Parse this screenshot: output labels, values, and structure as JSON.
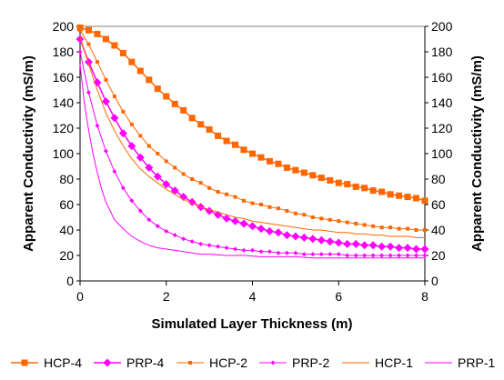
{
  "chart_data": {
    "type": "line",
    "xlabel": "Simulated Layer Thickness (m)",
    "ylabel_left": "Apparent Conductivity (mS/m)",
    "ylabel_right": "Apparent Conductivity (mS/m)",
    "xlim": [
      0,
      8
    ],
    "ylim": [
      0,
      200
    ],
    "x_ticks": [
      "0",
      "2",
      "4",
      "6",
      "8"
    ],
    "y_ticks": [
      "0",
      "20",
      "40",
      "60",
      "80",
      "100",
      "120",
      "140",
      "160",
      "180",
      "200"
    ],
    "grid": false,
    "legend_position": "bottom",
    "series": [
      {
        "name": "HCP-4",
        "color": "#ff6600",
        "marker": "square",
        "width": 1.5,
        "points": [
          [
            0,
            199
          ],
          [
            0.2,
            197
          ],
          [
            0.4,
            194
          ],
          [
            0.6,
            190
          ],
          [
            0.8,
            185
          ],
          [
            1,
            179
          ],
          [
            1.2,
            172
          ],
          [
            1.4,
            165
          ],
          [
            1.6,
            158
          ],
          [
            1.8,
            151
          ],
          [
            2,
            145
          ],
          [
            2.2,
            139
          ],
          [
            2.4,
            134
          ],
          [
            2.6,
            128
          ],
          [
            2.8,
            123
          ],
          [
            3,
            119
          ],
          [
            3.2,
            114
          ],
          [
            3.4,
            110
          ],
          [
            3.6,
            107
          ],
          [
            3.8,
            103
          ],
          [
            4,
            100
          ],
          [
            4.2,
            97
          ],
          [
            4.4,
            94
          ],
          [
            4.6,
            92
          ],
          [
            4.8,
            89
          ],
          [
            5,
            87
          ],
          [
            5.2,
            85
          ],
          [
            5.4,
            83
          ],
          [
            5.6,
            81
          ],
          [
            5.8,
            79
          ],
          [
            6,
            77
          ],
          [
            6.2,
            76
          ],
          [
            6.4,
            74
          ],
          [
            6.6,
            73
          ],
          [
            6.8,
            71
          ],
          [
            7,
            70
          ],
          [
            7.2,
            68
          ],
          [
            7.4,
            67
          ],
          [
            7.6,
            66
          ],
          [
            7.8,
            65
          ],
          [
            8,
            63
          ]
        ]
      },
      {
        "name": "PRP-4",
        "color": "#ff00ff",
        "marker": "diamond",
        "width": 1.5,
        "points": [
          [
            0,
            190
          ],
          [
            0.2,
            172
          ],
          [
            0.4,
            156
          ],
          [
            0.6,
            141
          ],
          [
            0.8,
            128
          ],
          [
            1,
            116
          ],
          [
            1.2,
            106
          ],
          [
            1.4,
            97
          ],
          [
            1.6,
            89
          ],
          [
            1.8,
            82
          ],
          [
            2,
            76
          ],
          [
            2.2,
            71
          ],
          [
            2.4,
            66
          ],
          [
            2.6,
            62
          ],
          [
            2.8,
            58
          ],
          [
            3,
            55
          ],
          [
            3.2,
            52
          ],
          [
            3.4,
            49
          ],
          [
            3.6,
            47
          ],
          [
            3.8,
            45
          ],
          [
            4,
            43
          ],
          [
            4.2,
            41
          ],
          [
            4.4,
            39
          ],
          [
            4.6,
            38
          ],
          [
            4.8,
            36
          ],
          [
            5,
            35
          ],
          [
            5.2,
            34
          ],
          [
            5.4,
            33
          ],
          [
            5.6,
            32
          ],
          [
            5.8,
            31
          ],
          [
            6,
            30
          ],
          [
            6.2,
            29
          ],
          [
            6.4,
            29
          ],
          [
            6.6,
            28
          ],
          [
            6.8,
            28
          ],
          [
            7,
            27
          ],
          [
            7.2,
            27
          ],
          [
            7.4,
            26
          ],
          [
            7.6,
            26
          ],
          [
            7.8,
            25
          ],
          [
            8,
            25
          ]
        ]
      },
      {
        "name": "HCP-2",
        "color": "#ff6600",
        "marker": "small-square",
        "width": 1,
        "points": [
          [
            0,
            197
          ],
          [
            0.2,
            186
          ],
          [
            0.4,
            172
          ],
          [
            0.6,
            158
          ],
          [
            0.8,
            145
          ],
          [
            1,
            133
          ],
          [
            1.2,
            123
          ],
          [
            1.4,
            114
          ],
          [
            1.6,
            106
          ],
          [
            1.8,
            100
          ],
          [
            2,
            94
          ],
          [
            2.2,
            89
          ],
          [
            2.4,
            84
          ],
          [
            2.6,
            80
          ],
          [
            2.8,
            77
          ],
          [
            3,
            73
          ],
          [
            3.2,
            70
          ],
          [
            3.4,
            68
          ],
          [
            3.6,
            66
          ],
          [
            3.8,
            63
          ],
          [
            4,
            61
          ],
          [
            4.2,
            60
          ],
          [
            4.4,
            58
          ],
          [
            4.6,
            57
          ],
          [
            4.8,
            55
          ],
          [
            5,
            53
          ],
          [
            5.2,
            52
          ],
          [
            5.4,
            50
          ],
          [
            5.6,
            49
          ],
          [
            5.8,
            48
          ],
          [
            6,
            47
          ],
          [
            6.2,
            46
          ],
          [
            6.4,
            45
          ],
          [
            6.6,
            44
          ],
          [
            6.8,
            43
          ],
          [
            7,
            42
          ],
          [
            7.2,
            42
          ],
          [
            7.4,
            41
          ],
          [
            7.6,
            41
          ],
          [
            7.8,
            40
          ],
          [
            8,
            40
          ]
        ]
      },
      {
        "name": "PRP-2",
        "color": "#ff00ff",
        "marker": "small-diamond",
        "width": 1,
        "points": [
          [
            0,
            180
          ],
          [
            0.2,
            148
          ],
          [
            0.4,
            122
          ],
          [
            0.6,
            102
          ],
          [
            0.8,
            86
          ],
          [
            1,
            73
          ],
          [
            1.2,
            63
          ],
          [
            1.4,
            55
          ],
          [
            1.6,
            48
          ],
          [
            1.8,
            43
          ],
          [
            2,
            39
          ],
          [
            2.2,
            36
          ],
          [
            2.4,
            33
          ],
          [
            2.6,
            31
          ],
          [
            2.8,
            29
          ],
          [
            3,
            28
          ],
          [
            3.2,
            27
          ],
          [
            3.4,
            26
          ],
          [
            3.6,
            25
          ],
          [
            3.8,
            24
          ],
          [
            4,
            24
          ],
          [
            4.2,
            23
          ],
          [
            4.4,
            23
          ],
          [
            4.6,
            22
          ],
          [
            4.8,
            22
          ],
          [
            5,
            22
          ],
          [
            5.2,
            21
          ],
          [
            5.4,
            21
          ],
          [
            5.6,
            21
          ],
          [
            5.8,
            21
          ],
          [
            6,
            21
          ],
          [
            6.2,
            20
          ],
          [
            6.4,
            20
          ],
          [
            6.6,
            20
          ],
          [
            6.8,
            20
          ],
          [
            7,
            20
          ],
          [
            7.2,
            20
          ],
          [
            7.4,
            20
          ],
          [
            7.6,
            20
          ],
          [
            7.8,
            20
          ],
          [
            8,
            20
          ]
        ]
      },
      {
        "name": "HCP-1",
        "color": "#ff6600",
        "marker": "none",
        "width": 1,
        "points": [
          [
            0,
            192
          ],
          [
            0.2,
            170
          ],
          [
            0.4,
            150
          ],
          [
            0.6,
            132
          ],
          [
            0.8,
            118
          ],
          [
            1,
            106
          ],
          [
            1.2,
            96
          ],
          [
            1.4,
            88
          ],
          [
            1.6,
            82
          ],
          [
            1.8,
            77
          ],
          [
            2,
            72
          ],
          [
            2.2,
            68
          ],
          [
            2.4,
            64
          ],
          [
            2.6,
            61
          ],
          [
            2.8,
            58
          ],
          [
            3,
            56
          ],
          [
            3.2,
            54
          ],
          [
            3.4,
            52
          ],
          [
            3.6,
            50
          ],
          [
            3.8,
            49
          ],
          [
            4,
            47
          ],
          [
            4.2,
            46
          ],
          [
            4.4,
            45
          ],
          [
            4.6,
            44
          ],
          [
            4.8,
            43
          ],
          [
            5,
            42
          ],
          [
            5.2,
            41
          ],
          [
            5.4,
            40
          ],
          [
            5.6,
            40
          ],
          [
            5.8,
            39
          ],
          [
            6,
            38
          ],
          [
            6.2,
            38
          ],
          [
            6.4,
            37
          ],
          [
            6.6,
            37
          ],
          [
            6.8,
            36
          ],
          [
            7,
            36
          ],
          [
            7.2,
            35
          ],
          [
            7.4,
            35
          ],
          [
            7.6,
            35
          ],
          [
            7.8,
            34
          ],
          [
            8,
            34
          ]
        ]
      },
      {
        "name": "PRP-1",
        "color": "#ff00ff",
        "marker": "none",
        "width": 1,
        "points": [
          [
            0,
            170
          ],
          [
            0.1,
            140
          ],
          [
            0.2,
            118
          ],
          [
            0.3,
            100
          ],
          [
            0.4,
            85
          ],
          [
            0.5,
            72
          ],
          [
            0.6,
            62
          ],
          [
            0.7,
            55
          ],
          [
            0.8,
            48
          ],
          [
            1,
            41
          ],
          [
            1.2,
            35
          ],
          [
            1.4,
            31
          ],
          [
            1.6,
            28
          ],
          [
            1.8,
            26
          ],
          [
            2,
            25
          ],
          [
            2.2,
            24
          ],
          [
            2.4,
            23
          ],
          [
            2.6,
            22
          ],
          [
            2.8,
            21
          ],
          [
            3,
            21
          ],
          [
            3.4,
            20
          ],
          [
            3.8,
            20
          ],
          [
            4.2,
            19
          ],
          [
            4.6,
            19
          ],
          [
            5,
            19
          ],
          [
            5.4,
            18
          ],
          [
            5.8,
            18
          ],
          [
            6.2,
            18
          ],
          [
            6.6,
            18
          ],
          [
            7,
            18
          ],
          [
            7.4,
            18
          ],
          [
            7.8,
            18
          ],
          [
            8,
            18
          ]
        ]
      }
    ]
  }
}
